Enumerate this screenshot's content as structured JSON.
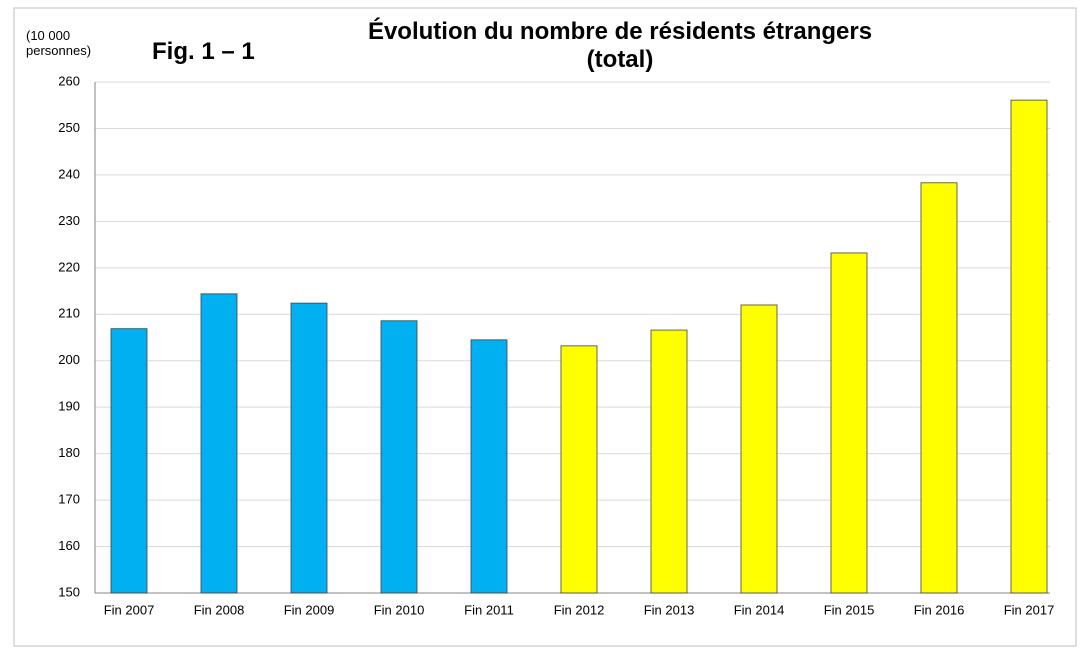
{
  "chart_data": {
    "type": "bar",
    "title": "Évolution du nombre de résidents étrangers (total)",
    "figure_label": "Fig. 1 – 1",
    "y_label": "(10 000 personnes)",
    "categories": [
      "Fin 2007",
      "Fin 2008",
      "Fin 2009",
      "Fin 2010",
      "Fin 2011",
      "Fin 2012",
      "Fin 2013",
      "Fin 2014",
      "Fin 2015",
      "Fin 2016",
      "Fin 2017"
    ],
    "values": [
      206.9,
      214.4,
      212.4,
      208.6,
      204.5,
      203.2,
      206.6,
      212.0,
      223.2,
      238.3,
      256.1
    ],
    "colors": [
      "#00b0f0",
      "#00b0f0",
      "#00b0f0",
      "#00b0f0",
      "#00b0f0",
      "#ffff00",
      "#ffff00",
      "#ffff00",
      "#ffff00",
      "#ffff00",
      "#ffff00"
    ],
    "ylim": [
      150,
      260
    ],
    "yticks": [
      150,
      160,
      170,
      180,
      190,
      200,
      210,
      220,
      230,
      240,
      250,
      260
    ],
    "grid": true
  }
}
